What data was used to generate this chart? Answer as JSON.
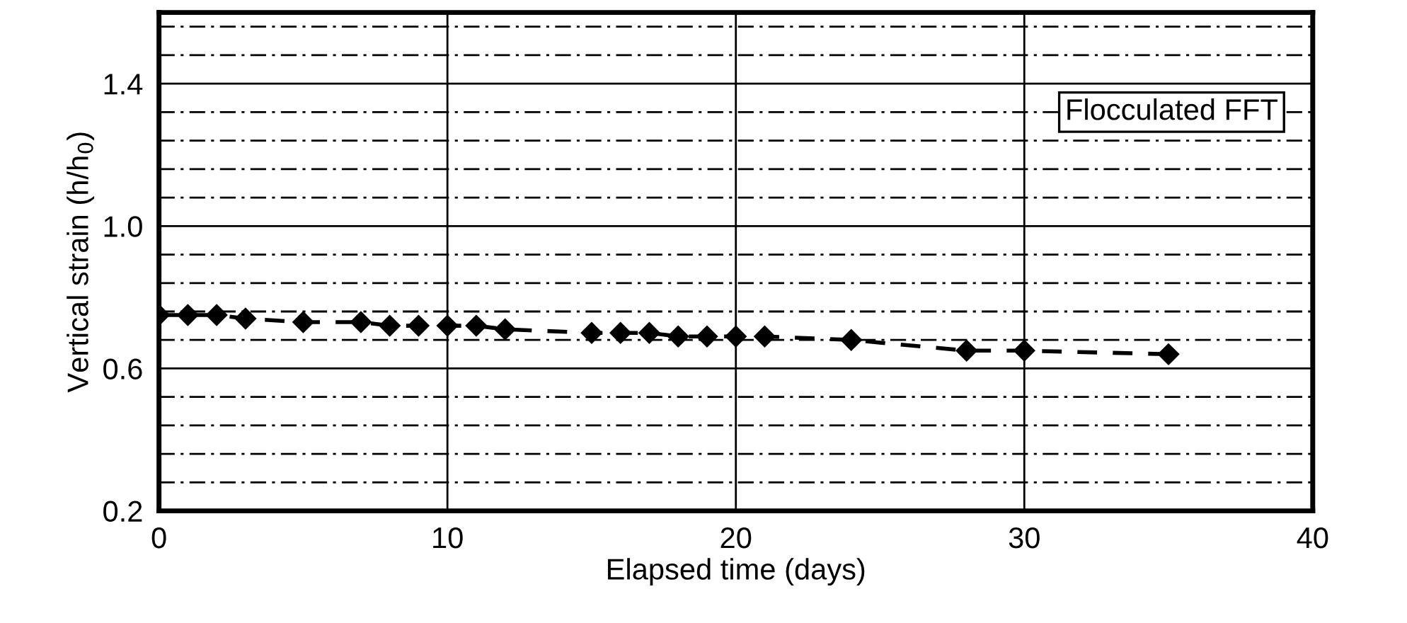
{
  "chart_data": {
    "type": "line",
    "xlabel": "Elapsed time (days)",
    "ylabel": "Vertical strain (h/h$_{0}$)",
    "annotations": [
      "Flocculated FFT"
    ],
    "x": [
      0,
      1,
      2,
      3,
      5,
      7,
      8,
      9,
      10,
      11,
      12,
      15,
      16,
      17,
      18,
      19,
      20,
      21,
      24,
      28,
      30,
      35
    ],
    "series": [
      {
        "color": "#000000",
        "values": [
          0.75,
          0.75,
          0.75,
          0.74,
          0.73,
          0.73,
          0.72,
          0.72,
          0.72,
          0.72,
          0.71,
          0.7,
          0.7,
          0.7,
          0.69,
          0.69,
          0.69,
          0.69,
          0.68,
          0.65,
          0.65,
          0.64
        ]
      }
    ],
    "marker": "diamond",
    "line_style": "dashed",
    "grid": true,
    "xlim": [
      0,
      40
    ],
    "xticks": [
      0,
      10,
      20,
      30,
      40
    ],
    "ylim": [
      0.2,
      1.6
    ],
    "yticks": [
      0.2,
      {
        "value": 0.28,
        "label": null
      },
      {
        "value": 0.36,
        "label": null
      },
      {
        "value": 0.44,
        "label": null
      },
      {
        "value": 0.52,
        "label": null
      },
      0.6,
      {
        "value": 0.68,
        "label": null
      },
      {
        "value": 0.76,
        "label": null
      },
      {
        "value": 0.84,
        "label": null
      },
      {
        "value": 0.92,
        "label": null
      },
      {
        "value": 1.0,
        "label": "1.0"
      },
      {
        "value": 1.08,
        "label": null
      },
      {
        "value": 1.16,
        "label": null
      },
      {
        "value": 1.24,
        "label": null
      },
      {
        "value": 1.32,
        "label": null
      },
      1.4,
      {
        "value": 1.48,
        "label": null
      },
      {
        "value": 1.56,
        "label": null
      }
    ]
  }
}
